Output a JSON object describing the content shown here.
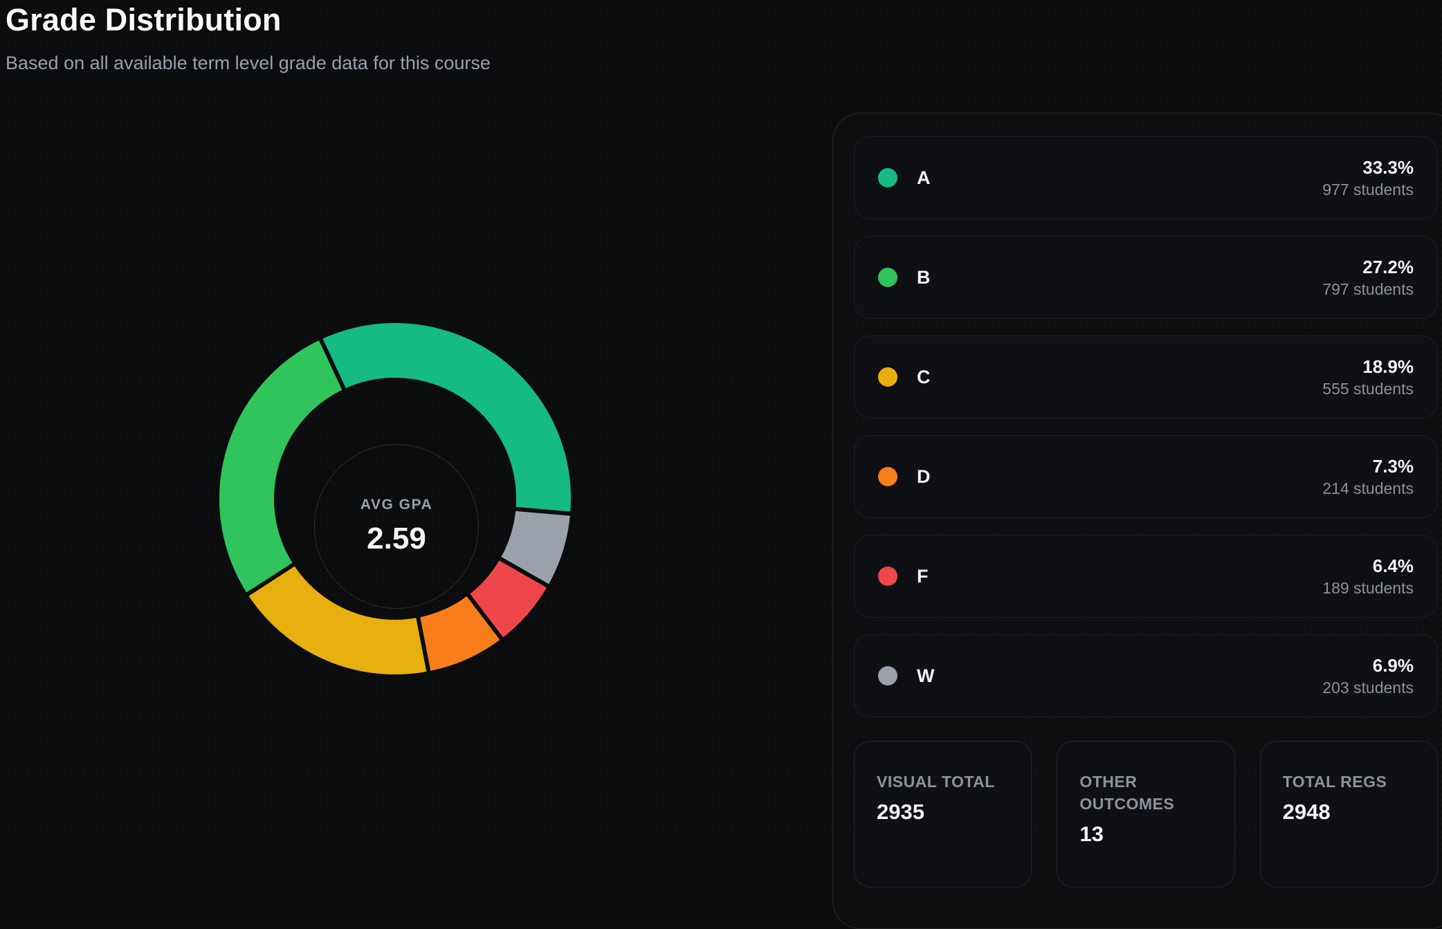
{
  "page": {
    "title": "Grade Distribution",
    "subtitle": "Based on all available term level grade data for this course"
  },
  "chart_data": {
    "type": "pie",
    "variant": "donut",
    "title": "Grade Distribution",
    "center_label": "AVG GPA",
    "center_value": "2.59",
    "start_angle_deg": -25,
    "gap_color": "#0b0c0e",
    "order_clockwise_from_top": [
      "A",
      "W",
      "F",
      "D",
      "C",
      "B"
    ],
    "segments": [
      {
        "label": "A",
        "value_pct": 33.3,
        "students": 977,
        "color": "#16bb84"
      },
      {
        "label": "B",
        "value_pct": 27.2,
        "students": 797,
        "color": "#2fc45c"
      },
      {
        "label": "C",
        "value_pct": 18.9,
        "students": 555,
        "color": "#e7b00e"
      },
      {
        "label": "D",
        "value_pct": 7.3,
        "students": 214,
        "color": "#f87d1b"
      },
      {
        "label": "F",
        "value_pct": 6.4,
        "students": 189,
        "color": "#ef4749"
      },
      {
        "label": "W",
        "value_pct": 6.9,
        "students": 203,
        "color": "#9ba1ab"
      }
    ]
  },
  "legend": {
    "items": [
      {
        "grade": "A",
        "pct_text": "33.3%",
        "students_text": "977 students",
        "color": "#16bb84"
      },
      {
        "grade": "B",
        "pct_text": "27.2%",
        "students_text": "797 students",
        "color": "#2fc45c"
      },
      {
        "grade": "C",
        "pct_text": "18.9%",
        "students_text": "555 students",
        "color": "#e7b00e"
      },
      {
        "grade": "D",
        "pct_text": "7.3%",
        "students_text": "214 students",
        "color": "#f87d1b"
      },
      {
        "grade": "F",
        "pct_text": "6.4%",
        "students_text": "189 students",
        "color": "#ef4749"
      },
      {
        "grade": "W",
        "pct_text": "6.9%",
        "students_text": "203 students",
        "color": "#9ba1ab"
      }
    ]
  },
  "summary": {
    "cards": [
      {
        "label": "VISUAL TOTAL",
        "value": "2935"
      },
      {
        "label": "OTHER OUTCOMES",
        "value": "13"
      },
      {
        "label": "TOTAL REGS",
        "value": "2948"
      }
    ]
  }
}
